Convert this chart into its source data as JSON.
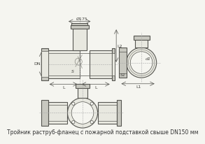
{
  "bg_color": "#f5f5f0",
  "line_color": "#888880",
  "dark_line": "#555550",
  "fill_gray": "#c8c8c0",
  "fill_light": "#e8e8e0",
  "caption": "Тройник раструб-фланец с пожарной подставкой свыше DN150 мм",
  "caption_fontsize": 5.5,
  "dim_text_color": "#444440",
  "dim_fontsize": 4.5,
  "annotations": {
    "d175": "Ø175",
    "l2": "L2",
    "l": "L",
    "l1": "L1",
    "dn": "DN",
    "s": "S",
    "s1": "S1",
    "d1": "d1"
  }
}
